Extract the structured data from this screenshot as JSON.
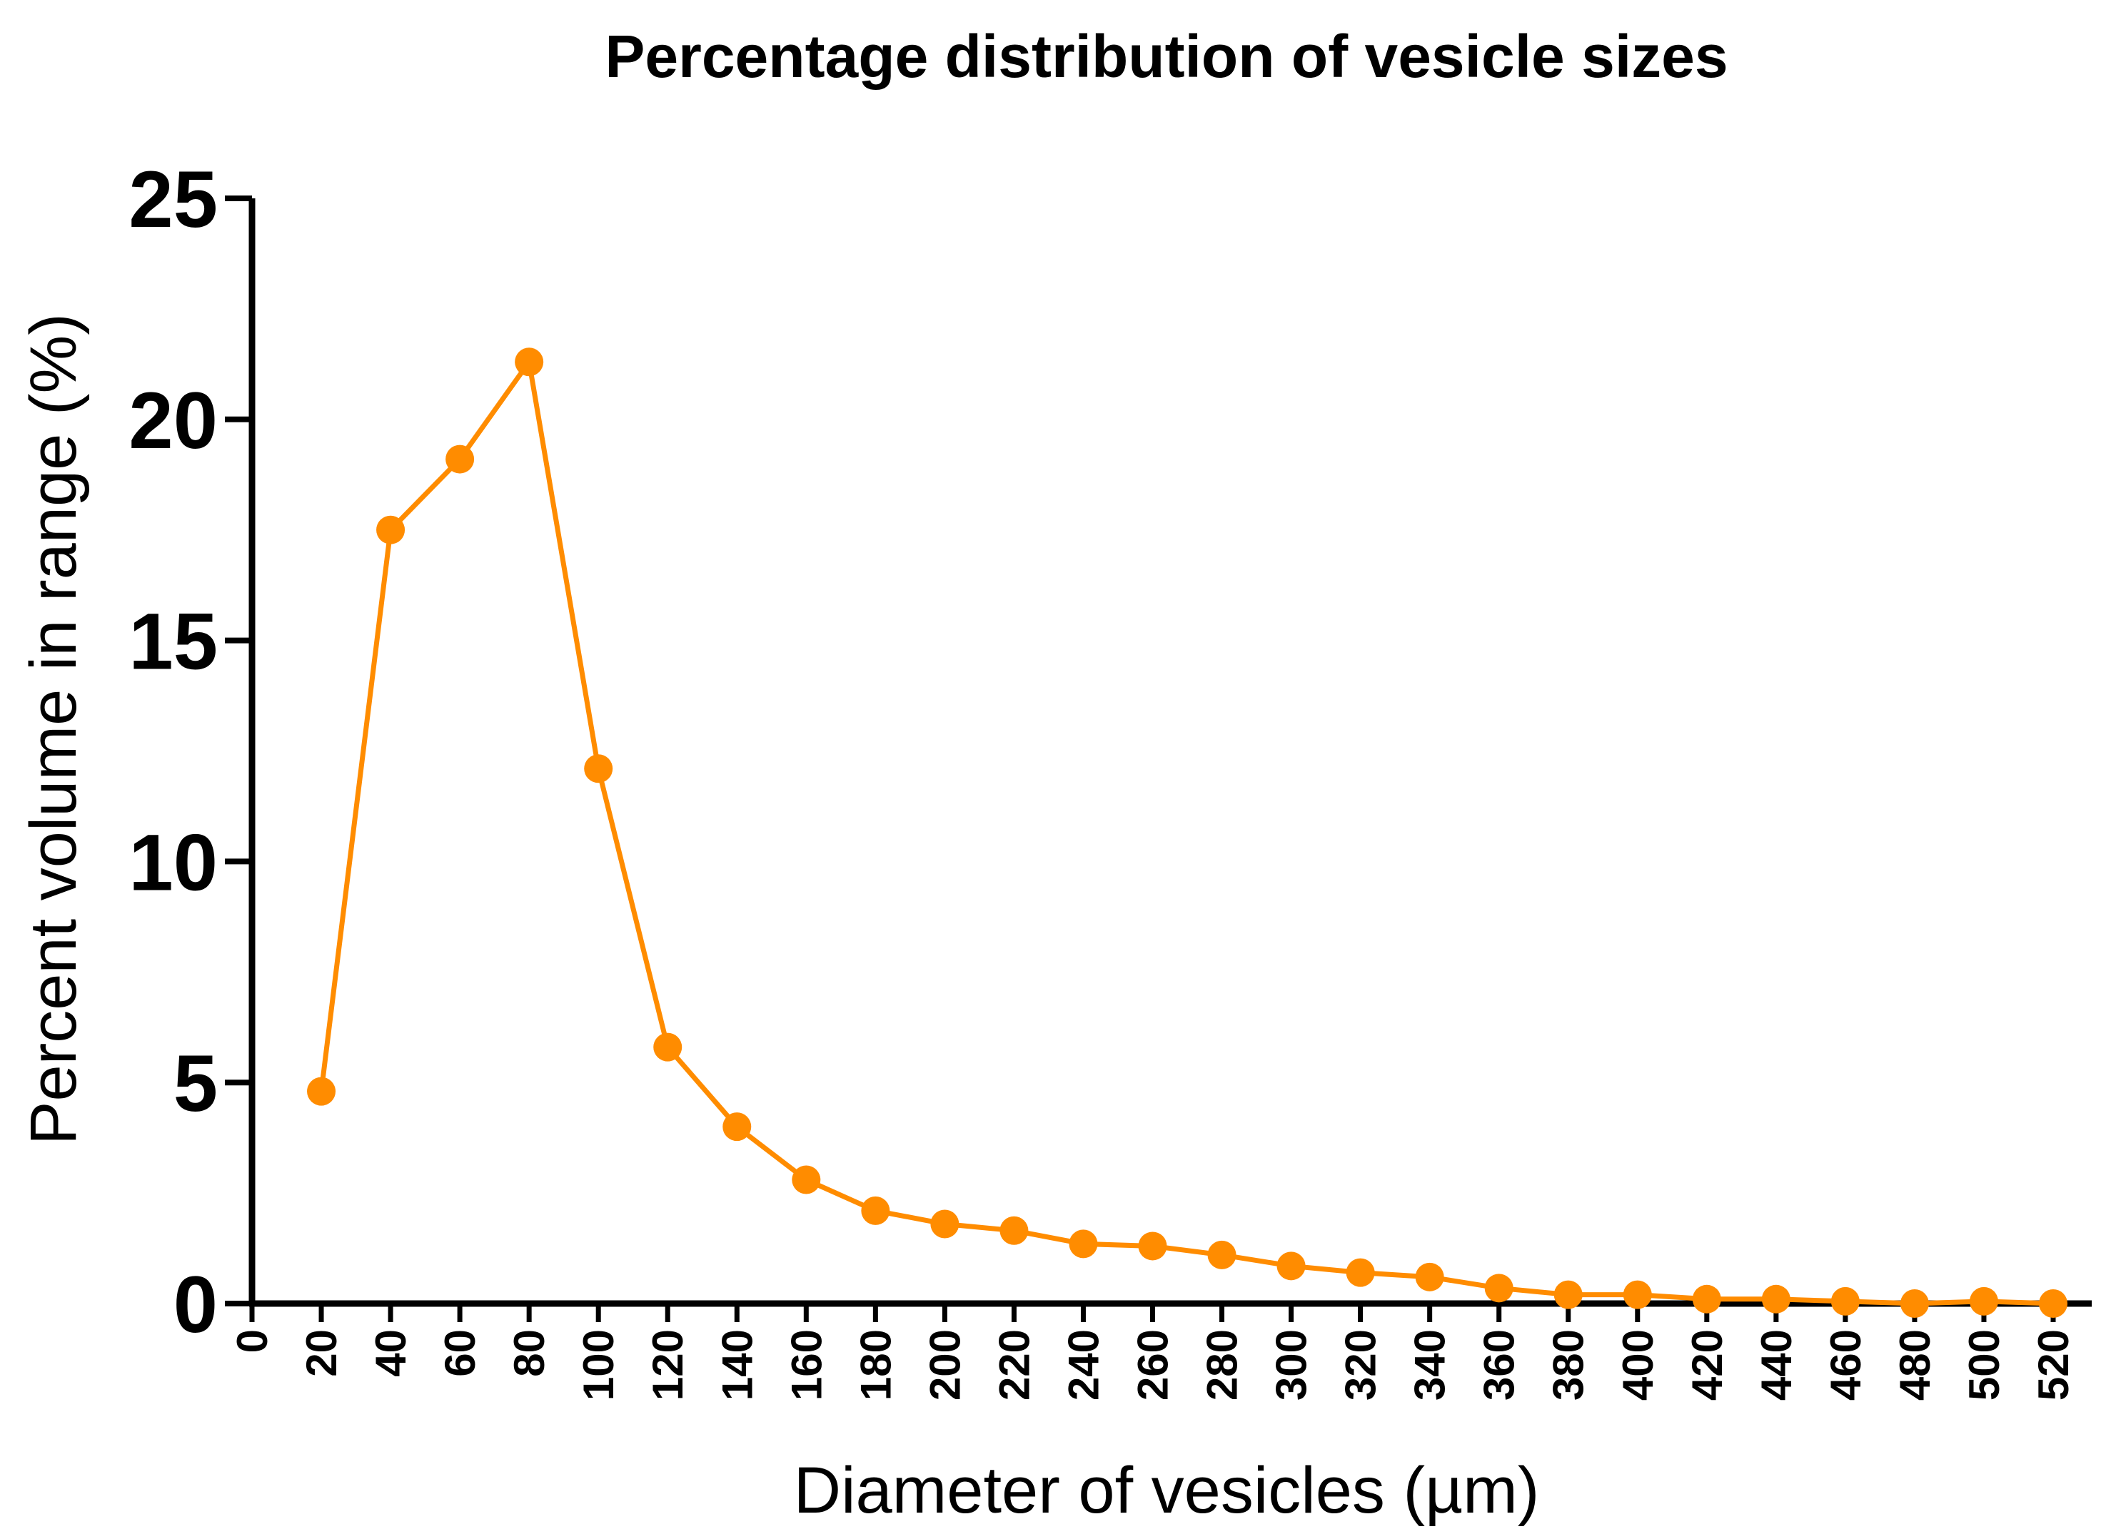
{
  "chart_data": {
    "type": "line",
    "title": "Percentage distribution of vesicle sizes",
    "xlabel": "Diameter of vesicles (µm)",
    "ylabel": "Percent volume in range (%)",
    "xlim": [
      0,
      520
    ],
    "ylim": [
      0,
      25
    ],
    "xticks": [
      "0",
      "20",
      "40",
      "60",
      "80",
      "100",
      "120",
      "140",
      "160",
      "180",
      "200",
      "220",
      "240",
      "260",
      "280",
      "300",
      "320",
      "340",
      "360",
      "380",
      "400",
      "420",
      "440",
      "460",
      "480",
      "500",
      "520"
    ],
    "yticks": [
      "0",
      "5",
      "10",
      "15",
      "20",
      "25"
    ],
    "grid": false,
    "legend": "none",
    "series": [
      {
        "name": "Percent volume",
        "color": "#ff8c00",
        "x": [
          20,
          40,
          60,
          80,
          100,
          120,
          140,
          160,
          180,
          200,
          220,
          240,
          260,
          280,
          300,
          320,
          340,
          360,
          380,
          400,
          420,
          440,
          460,
          480,
          500,
          520
        ],
        "y": [
          4.8,
          17.5,
          19.1,
          21.3,
          12.1,
          5.8,
          4.0,
          2.8,
          2.1,
          1.8,
          1.65,
          1.35,
          1.3,
          1.1,
          0.85,
          0.7,
          0.6,
          0.35,
          0.2,
          0.2,
          0.1,
          0.1,
          0.05,
          0.0,
          0.05,
          0.0
        ]
      }
    ]
  }
}
